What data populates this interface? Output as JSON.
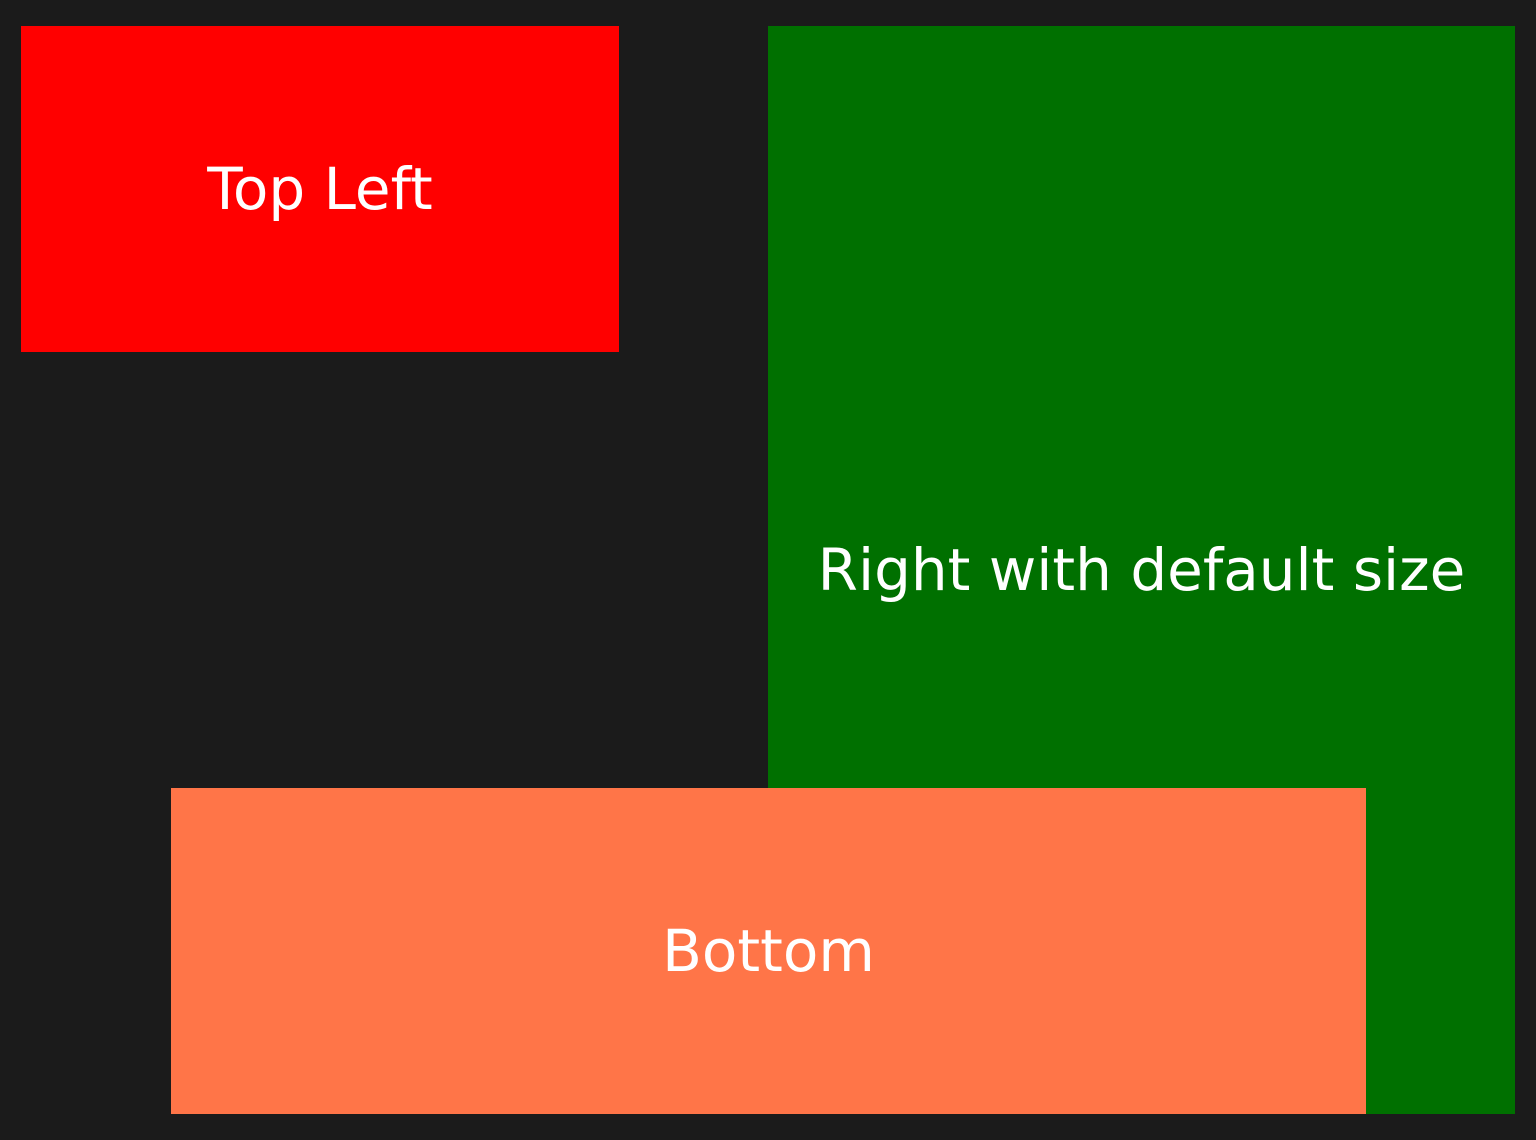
{
  "panels": {
    "top_left": {
      "label": "Top Left",
      "color": "#ff0000"
    },
    "right": {
      "label": "Right with default size",
      "color": "#007000"
    },
    "bottom": {
      "label": "Bottom",
      "color": "#ff7548"
    }
  },
  "background_color": "#1b1b1b"
}
